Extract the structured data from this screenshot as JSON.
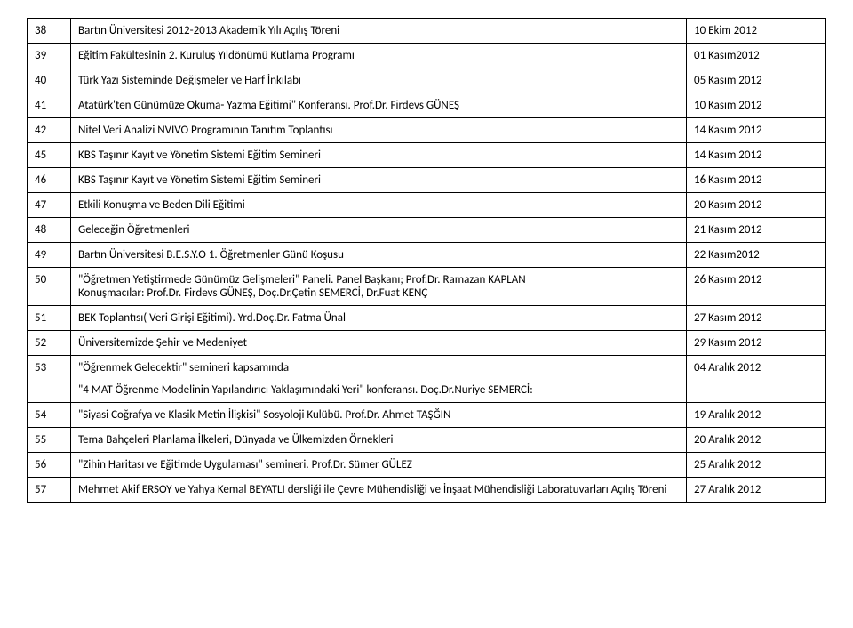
{
  "rows": [
    {
      "n": "38",
      "desc": "Bartın Üniversitesi 2012-2013 Akademik Yılı Açılış Töreni",
      "date": "10 Ekim 2012"
    },
    {
      "n": "39",
      "desc": "Eğitim Fakültesinin 2. Kuruluş Yıldönümü Kutlama Programı",
      "date": "01 Kasım2012"
    },
    {
      "n": "40",
      "desc": "Türk Yazı Sisteminde Değişmeler ve Harf İnkılabı",
      "date": "05 Kasım 2012"
    },
    {
      "n": "41",
      "desc": "Atatürk'ten Günümüze Okuma- Yazma Eğitimi\" Konferansı. Prof.Dr. Firdevs GÜNEŞ",
      "date": "10 Kasım 2012"
    },
    {
      "n": "42",
      "desc": "Nitel Veri Analizi NVIVO Programının Tanıtım Toplantısı",
      "date": "14 Kasım 2012"
    },
    {
      "n": "45",
      "desc": "KBS Taşınır Kayıt ve Yönetim Sistemi Eğitim Semineri",
      "date": "14 Kasım 2012"
    },
    {
      "n": "46",
      "desc": "KBS Taşınır Kayıt ve Yönetim Sistemi Eğitim Semineri",
      "date": "16 Kasım 2012"
    },
    {
      "n": "47",
      "desc": "Etkili Konuşma ve Beden Dili Eğitimi",
      "date": "20 Kasım 2012"
    },
    {
      "n": "48",
      "desc": "Geleceğin Öğretmenleri",
      "date": "21 Kasım 2012"
    },
    {
      "n": "49",
      "desc": "Bartın Üniversitesi B.E.S.Y.O  1. Öğretmenler Günü Koşusu",
      "date": "22 Kasım2012"
    },
    {
      "n": "50",
      "desc": "\"Öğretmen Yetiştirmede Günümüz Gelişmeleri\" Paneli. Panel Başkanı; Prof.Dr. Ramazan KAPLAN\n Konuşmacılar: Prof.Dr. Firdevs GÜNEŞ, Doç.Dr.Çetin SEMERCİ, Dr.Fuat KENÇ",
      "date": "26 Kasım 2012"
    },
    {
      "n": "51",
      "desc": "BEK Toplantısı( Veri Girişi Eğitimi). Yrd.Doç.Dr. Fatma Ünal",
      "date": "27 Kasım 2012"
    },
    {
      "n": "52",
      "desc": "Üniversitemizde Şehir ve Medeniyet",
      "date": "29 Kasım 2012"
    },
    {
      "n": "53",
      "desc": "\"Öğrenmek Gelecektir\" semineri kapsamında",
      "sub": "\"4 MAT Öğrenme Modelinin Yapılandırıcı Yaklaşımındaki Yeri\" konferansı. Doç.Dr.Nuriye SEMERCİ:",
      "date": "04  Aralık 2012"
    },
    {
      "n": "54",
      "desc": "\"Siyasi Coğrafya ve Klasik Metin İlişkisi\" Sosyoloji Kulübü. Prof.Dr. Ahmet TAŞĞIN",
      "date": "19 Aralık  2012"
    },
    {
      "n": "55",
      "desc": "Tema Bahçeleri Planlama İlkeleri, Dünyada ve Ülkemizden Örnekleri",
      "date": "20 Aralık 2012"
    },
    {
      "n": "56",
      "desc": "\"Zihin Haritası ve  Eğitimde Uygulaması\" semineri. Prof.Dr. Sümer GÜLEZ",
      "date": "25 Aralık 2012"
    },
    {
      "n": "57",
      "desc": "Mehmet Akif ERSOY ve Yahya Kemal BEYATLI dersliği ile  Çevre Mühendisliği ve  İnşaat Mühendisliği Laboratuvarları Açılış Töreni",
      "date": "27 Aralık 2012"
    }
  ]
}
